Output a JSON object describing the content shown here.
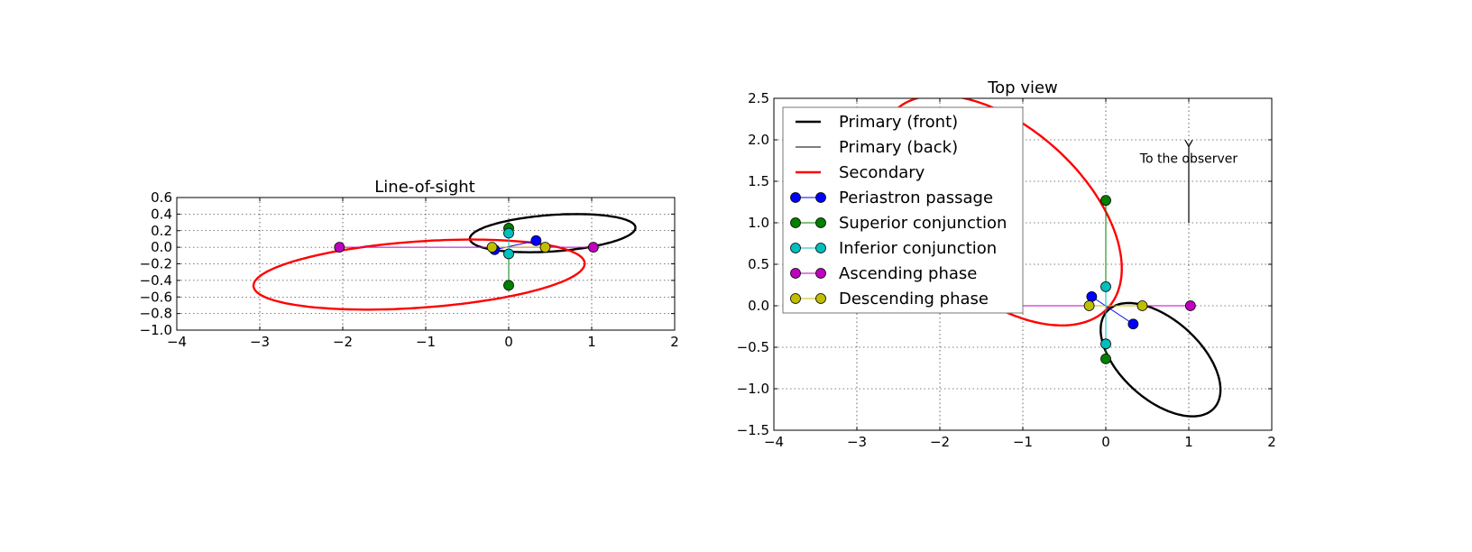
{
  "chart_data": [
    {
      "type": "line",
      "title": "Line-of-sight",
      "xlabel": "",
      "ylabel": "",
      "xlim": [
        -4,
        2
      ],
      "ylim": [
        -1.0,
        0.6
      ],
      "y_inverted": false,
      "grid": true,
      "xticks": [
        -4,
        -3,
        -2,
        -1,
        0,
        1,
        2
      ],
      "xtick_labels": [
        "−4",
        "−3",
        "−2",
        "−1",
        "0",
        "1",
        "2"
      ],
      "yticks": [
        0.6,
        0.4,
        0.2,
        0.0,
        -0.2,
        -0.4,
        -0.6,
        -0.8,
        -1.0
      ],
      "ytick_labels": [
        "0.6",
        "0.4",
        "0.2",
        "0.0",
        "−0.2",
        "−0.4",
        "−0.6",
        "−0.8",
        "−1.0"
      ],
      "ellipses": [
        {
          "name": "primary",
          "color": "#000000",
          "cx": 0.53,
          "cy": 0.17,
          "rx": 1.0,
          "ry": 0.22,
          "rot_deg": 4
        },
        {
          "name": "secondary",
          "color": "#ff0000",
          "cx": -1.08,
          "cy": -0.33,
          "rx": 2.0,
          "ry": 0.4,
          "rot_deg": 4
        }
      ],
      "series": [
        {
          "name": "Periastron passage",
          "color": "#0000ff",
          "points": [
            [
              -0.17,
              -0.03
            ],
            [
              0.33,
              0.08
            ]
          ]
        },
        {
          "name": "Superior conjunction",
          "color": "#008000",
          "points": [
            [
              0.0,
              -0.46
            ],
            [
              0.0,
              0.23
            ]
          ]
        },
        {
          "name": "Inferior conjunction",
          "color": "#00bfbf",
          "points": [
            [
              0.0,
              -0.08
            ],
            [
              0.0,
              0.17
            ]
          ]
        },
        {
          "name": "Ascending phase",
          "color": "#bf00bf",
          "points": [
            [
              -2.04,
              0.0
            ],
            [
              1.02,
              0.0
            ]
          ]
        },
        {
          "name": "Descending phase",
          "color": "#bfbf00",
          "points": [
            [
              -0.2,
              0.0
            ],
            [
              0.44,
              0.0
            ]
          ]
        }
      ]
    },
    {
      "type": "line",
      "title": "Top view",
      "xlabel": "",
      "ylabel": "",
      "xlim": [
        -4,
        2
      ],
      "ylim": [
        2.5,
        -1.5
      ],
      "y_inverted": true,
      "grid": true,
      "xticks": [
        -4,
        -3,
        -2,
        -1,
        0,
        1,
        2
      ],
      "xtick_labels": [
        "−4",
        "−3",
        "−2",
        "−1",
        "0",
        "1",
        "2"
      ],
      "yticks": [
        -1.5,
        -1.0,
        -0.5,
        0.0,
        0.5,
        1.0,
        1.5,
        2.0,
        2.5
      ],
      "ytick_labels": [
        "−1.5",
        "−1.0",
        "−0.5",
        "0.0",
        "0.5",
        "1.0",
        "1.5",
        "2.0",
        "2.5"
      ],
      "legend": {
        "position": "upper left",
        "entries": [
          {
            "label": "Primary (front)",
            "color": "#000000",
            "style": "thick"
          },
          {
            "label": "Primary (back)",
            "color": "#000000",
            "style": "thin"
          },
          {
            "label": "Secondary",
            "color": "#ff0000",
            "style": "thick"
          },
          {
            "label": "Periastron passage",
            "color": "#0000ff",
            "style": "marker"
          },
          {
            "label": "Superior conjunction",
            "color": "#008000",
            "style": "marker"
          },
          {
            "label": "Inferior conjunction",
            "color": "#00bfbf",
            "style": "marker"
          },
          {
            "label": "Ascending phase",
            "color": "#bf00bf",
            "style": "marker"
          },
          {
            "label": "Descending phase",
            "color": "#bfbf00",
            "style": "marker"
          }
        ]
      },
      "ellipses": [
        {
          "name": "primary",
          "color": "#000000",
          "cx": 0.66,
          "cy": -0.65,
          "rx": 0.87,
          "ry": 0.48,
          "rot_deg": -42
        },
        {
          "name": "secondary",
          "color": "#ff0000",
          "cx": -1.27,
          "cy": 1.15,
          "rx": 1.75,
          "ry": 1.0,
          "rot_deg": -42
        }
      ],
      "series": [
        {
          "name": "Periastron passage",
          "color": "#0000ff",
          "points": [
            [
              -0.17,
              0.11
            ],
            [
              0.33,
              -0.22
            ]
          ]
        },
        {
          "name": "Superior conjunction",
          "color": "#008000",
          "points": [
            [
              0.0,
              -0.64
            ],
            [
              0.0,
              1.27
            ]
          ]
        },
        {
          "name": "Inferior conjunction",
          "color": "#00bfbf",
          "points": [
            [
              0.0,
              -0.46
            ],
            [
              0.0,
              0.23
            ]
          ]
        },
        {
          "name": "Ascending phase",
          "color": "#bf00bf",
          "points": [
            [
              -2.04,
              0.0
            ],
            [
              1.02,
              0.0
            ]
          ]
        },
        {
          "name": "Descending phase",
          "color": "#bfbf00",
          "points": [
            [
              -0.2,
              0.0
            ],
            [
              0.44,
              0.0
            ]
          ]
        }
      ],
      "annotation": {
        "text": "To the observer",
        "arrow_x": 1.0,
        "arrow_from_y": 1.0,
        "arrow_to_y": 1.92
      }
    }
  ]
}
